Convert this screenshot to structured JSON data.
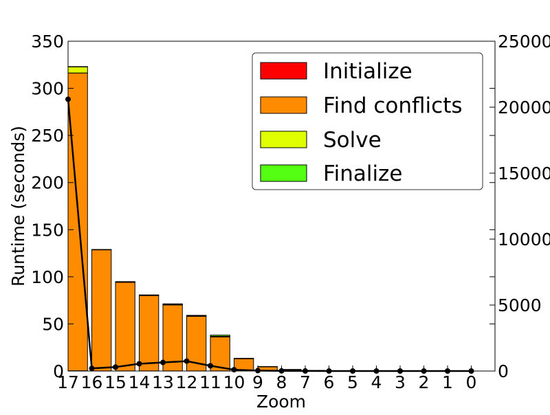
{
  "chart_data": {
    "type": "bar",
    "stacked": true,
    "xlabel": "Zoom",
    "ylabel": "Runtime (seconds)",
    "ylim": [
      0,
      350
    ],
    "y_ticks": [
      0,
      50,
      100,
      150,
      200,
      250,
      300,
      350
    ],
    "y2lim": [
      0,
      25000
    ],
    "y2_ticks": [
      0,
      5000,
      10000,
      15000,
      20000,
      25000
    ],
    "y2_tick_labels": [
      "0",
      "5000",
      "10000",
      "15000",
      "20000",
      "25000"
    ],
    "grid": false,
    "legend_position": "top-right",
    "categories": [
      "17",
      "16",
      "15",
      "14",
      "13",
      "12",
      "11",
      "10",
      "9",
      "8",
      "7",
      "6",
      "5",
      "4",
      "3",
      "2",
      "1",
      "0"
    ],
    "series": [
      {
        "name": "Initialize",
        "color": "#ff0000",
        "values": [
          0.3,
          0.1,
          0.1,
          0.1,
          0.1,
          0.1,
          0.1,
          0.05,
          0.02,
          0.01,
          0,
          0,
          0,
          0,
          0,
          0,
          0,
          0
        ]
      },
      {
        "name": "Find conflicts",
        "color": "#ff8c00",
        "values": [
          316,
          128.5,
          94,
          80,
          70,
          58,
          36,
          13,
          4.5,
          1.5,
          0.5,
          0.2,
          0.1,
          0.05,
          0.02,
          0.01,
          0.01,
          0.01
        ]
      },
      {
        "name": "Solve",
        "color": "#dfff00",
        "values": [
          6.5,
          0.3,
          0.6,
          0.5,
          0.8,
          0.6,
          0.8,
          0.3,
          0.2,
          0.1,
          0.05,
          0.02,
          0.01,
          0.01,
          0,
          0,
          0,
          0
        ]
      },
      {
        "name": "Finalize",
        "color": "#55ff11",
        "values": [
          0.3,
          0.1,
          0.2,
          0.2,
          0.4,
          0.4,
          1.2,
          0.2,
          0.1,
          0.05,
          0.02,
          0.01,
          0,
          0,
          0,
          0,
          0,
          0
        ]
      }
    ],
    "line_series": {
      "axis": "right",
      "color": "#000000",
      "values": [
        20600,
        200,
        300,
        550,
        650,
        750,
        400,
        100,
        30,
        10,
        5,
        2,
        1,
        1,
        0,
        0,
        0,
        0
      ]
    }
  }
}
